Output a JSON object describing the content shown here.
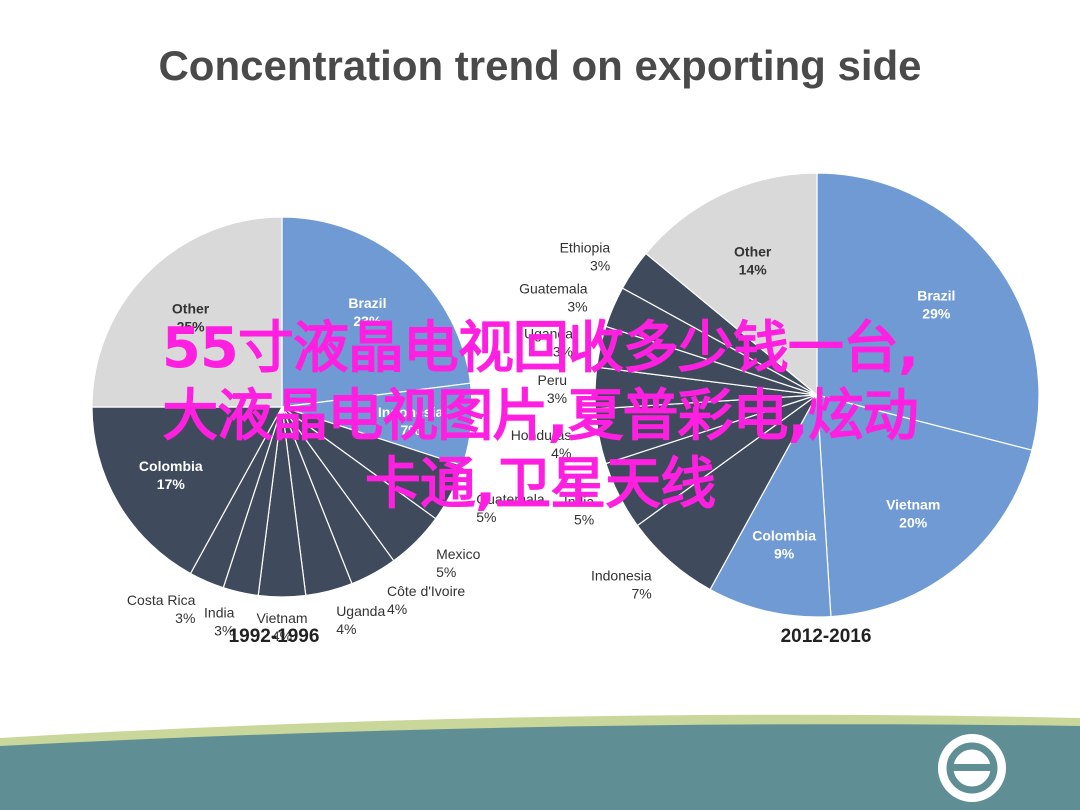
{
  "title": "Concentration trend on exporting side",
  "chart_data": [
    {
      "type": "pie",
      "title": "1992-1996",
      "slices": [
        {
          "label": "Brazil",
          "value": 23,
          "pct_text": "23%",
          "color": "#6f9ad4",
          "inside": true
        },
        {
          "label": "Indonesia",
          "value": 7,
          "pct_text": "7%",
          "color": "#6f9ad4",
          "inside": true
        },
        {
          "label": "Guatemala",
          "value": 5,
          "pct_text": "5%",
          "color": "#3f4a5c",
          "inside": false
        },
        {
          "label": "Mexico",
          "value": 5,
          "pct_text": "5%",
          "color": "#3f4a5c",
          "inside": false
        },
        {
          "label": "Côte d'Ivoire",
          "value": 4,
          "pct_text": "4%",
          "color": "#3f4a5c",
          "inside": false
        },
        {
          "label": "Uganda",
          "value": 4,
          "pct_text": "4%",
          "color": "#3f4a5c",
          "inside": false
        },
        {
          "label": "Vietnam",
          "value": 4,
          "pct_text": "4%",
          "color": "#3f4a5c",
          "inside": false
        },
        {
          "label": "India",
          "value": 3,
          "pct_text": "3%",
          "color": "#3f4a5c",
          "inside": false
        },
        {
          "label": "Costa Rica",
          "value": 3,
          "pct_text": "3%",
          "color": "#3f4a5c",
          "inside": false
        },
        {
          "label": "Colombia",
          "value": 17,
          "pct_text": "17%",
          "color": "#3f4a5c",
          "inside": true
        },
        {
          "label": "Other",
          "value": 25,
          "pct_text": "25%",
          "color": "#d9d9d9",
          "inside": true
        }
      ]
    },
    {
      "type": "pie",
      "title": "2012-2016",
      "slices": [
        {
          "label": "Brazil",
          "value": 29,
          "pct_text": "29%",
          "color": "#6f9ad4",
          "inside": true
        },
        {
          "label": "Vietnam",
          "value": 20,
          "pct_text": "20%",
          "color": "#6f9ad4",
          "inside": true
        },
        {
          "label": "Colombia",
          "value": 9,
          "pct_text": "9%",
          "color": "#6f9ad4",
          "inside": true
        },
        {
          "label": "Indonesia",
          "value": 7,
          "pct_text": "7%",
          "color": "#3f4a5c",
          "inside": false
        },
        {
          "label": "India",
          "value": 5,
          "pct_text": "5%",
          "color": "#3f4a5c",
          "inside": false
        },
        {
          "label": "Honduras",
          "value": 4,
          "pct_text": "4%",
          "color": "#3f4a5c",
          "inside": false
        },
        {
          "label": "Peru",
          "value": 3,
          "pct_text": "3%",
          "color": "#3f4a5c",
          "inside": false
        },
        {
          "label": "Uganda",
          "value": 3,
          "pct_text": "3%",
          "color": "#3f4a5c",
          "inside": false
        },
        {
          "label": "Guatemala",
          "value": 3,
          "pct_text": "3%",
          "color": "#3f4a5c",
          "inside": false
        },
        {
          "label": "Ethiopia",
          "value": 3,
          "pct_text": "3%",
          "color": "#3f4a5c",
          "inside": false
        },
        {
          "label": "Other",
          "value": 14,
          "pct_text": "14%",
          "color": "#d9d9d9",
          "inside": true
        }
      ]
    }
  ],
  "overlay": {
    "line1": "55寸液晶电视回收多少钱一台,",
    "line2": "大液晶电视图片,夏普彩电,炫动",
    "line3": "卡通,卫星天线"
  },
  "colors": {
    "blue": "#6f9ad4",
    "dark": "#3f4a5c",
    "grey": "#d9d9d9",
    "overlay": "#ff1fe0",
    "footer_teal": "#5f8f94",
    "footer_band": "#c9d79a"
  },
  "icons": {
    "footer_logo": "circle-logo-icon"
  }
}
